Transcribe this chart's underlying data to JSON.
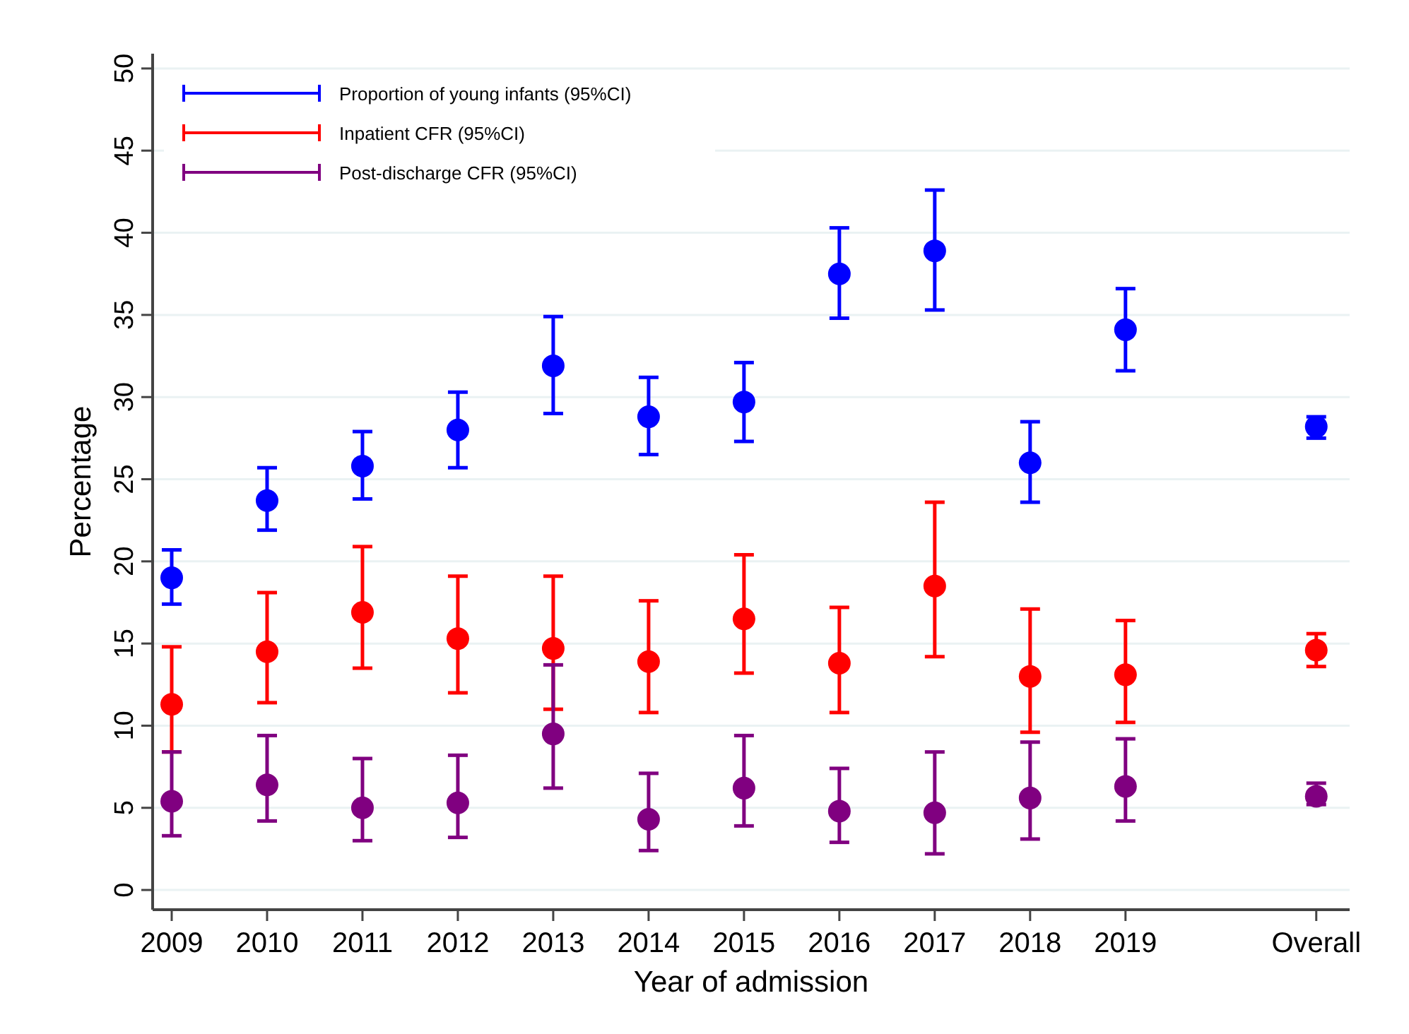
{
  "chart_data": {
    "type": "scatter",
    "xlabel": "Year of admission",
    "ylabel": "Percentage",
    "categories": [
      "2009",
      "2010",
      "2011",
      "2012",
      "2013",
      "2014",
      "2015",
      "2016",
      "2017",
      "2018",
      "2019",
      null,
      "Overall"
    ],
    "ylim": [
      -1.2,
      50.9
    ],
    "yticks": [
      0,
      5,
      10,
      15,
      20,
      25,
      30,
      35,
      40,
      45,
      50
    ],
    "grid": "y",
    "legend": "top left",
    "marker": "circle",
    "series": [
      {
        "name": "Proportion of young infants (95%CI)",
        "color": "#0000ff",
        "values": [
          19.0,
          23.7,
          25.8,
          28.0,
          31.9,
          28.8,
          29.7,
          37.5,
          38.9,
          26.0,
          34.1,
          null,
          28.2
        ],
        "errors": [
          [
            17.4,
            20.7
          ],
          [
            21.9,
            25.7
          ],
          [
            23.8,
            27.9
          ],
          [
            25.7,
            30.3
          ],
          [
            29.0,
            34.9
          ],
          [
            26.5,
            31.2
          ],
          [
            27.3,
            32.1
          ],
          [
            34.8,
            40.3
          ],
          [
            35.3,
            42.6
          ],
          [
            23.6,
            28.5
          ],
          [
            31.6,
            36.6
          ],
          null,
          [
            27.5,
            28.8
          ]
        ]
      },
      {
        "name": "Inpatient CFR (95%CI)",
        "color": "#ff0000",
        "values": [
          11.3,
          14.5,
          16.9,
          15.3,
          14.7,
          13.9,
          16.5,
          13.8,
          18.5,
          13.0,
          13.1,
          null,
          14.6
        ],
        "errors": [
          [
            8.4,
            14.8
          ],
          [
            11.4,
            18.1
          ],
          [
            13.5,
            20.9
          ],
          [
            12.0,
            19.1
          ],
          [
            11.0,
            19.1
          ],
          [
            10.8,
            17.6
          ],
          [
            13.2,
            20.4
          ],
          [
            10.8,
            17.2
          ],
          [
            14.2,
            23.6
          ],
          [
            9.6,
            17.1
          ],
          [
            10.2,
            16.4
          ],
          null,
          [
            13.6,
            15.6
          ]
        ]
      },
      {
        "name": "Post-discharge CFR (95%CI)",
        "color": "#800080",
        "values": [
          5.4,
          6.4,
          5.0,
          5.3,
          9.5,
          4.3,
          6.2,
          4.8,
          4.7,
          5.6,
          6.3,
          null,
          5.7
        ],
        "errors": [
          [
            3.3,
            8.4
          ],
          [
            4.2,
            9.4
          ],
          [
            3.0,
            8.0
          ],
          [
            3.2,
            8.2
          ],
          [
            6.2,
            13.7
          ],
          [
            2.4,
            7.1
          ],
          [
            3.9,
            9.4
          ],
          [
            2.9,
            7.4
          ],
          [
            2.2,
            8.4
          ],
          [
            3.1,
            9.0
          ],
          [
            4.2,
            9.2
          ],
          null,
          [
            5.2,
            6.5
          ]
        ]
      }
    ]
  }
}
